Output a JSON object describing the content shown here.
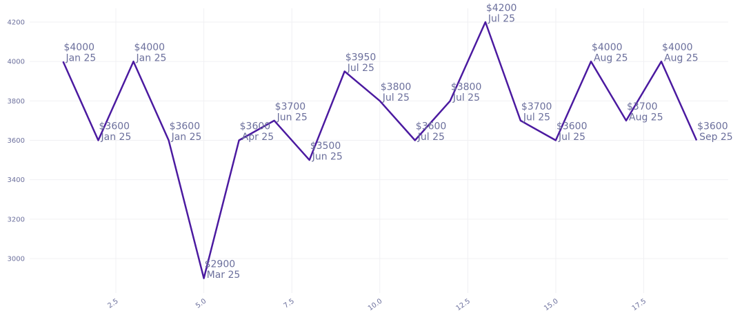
{
  "chart_data": {
    "type": "line",
    "x": [
      1,
      2,
      3,
      4,
      5,
      6,
      7,
      8,
      9,
      10,
      11,
      12,
      13,
      14,
      15,
      16,
      17,
      18,
      19
    ],
    "y": [
      4000,
      3600,
      4000,
      3600,
      2900,
      3600,
      3700,
      3500,
      3950,
      3800,
      3600,
      3800,
      4200,
      3700,
      3600,
      4000,
      3700,
      4000,
      3600
    ],
    "point_labels": [
      [
        "$4000",
        "Jan 25"
      ],
      [
        "$3600",
        "Jan 25"
      ],
      [
        "$4000",
        "Jan 25"
      ],
      [
        "$3600",
        "Jan 25"
      ],
      [
        "$2900",
        "Mar 25"
      ],
      [
        "$3600",
        "Apr 25"
      ],
      [
        "$3700",
        "Jun 25"
      ],
      [
        "$3500",
        "Jun 25"
      ],
      [
        "$3950",
        "Jul 25"
      ],
      [
        "$3800",
        "Jul 25"
      ],
      [
        "$3600",
        "Jul 25"
      ],
      [
        "$3800",
        "Jul 25"
      ],
      [
        "$4200",
        "Jul 25"
      ],
      [
        "$3700",
        "Jul 25"
      ],
      [
        "$3600",
        "Jul 25"
      ],
      [
        "$4000",
        "Aug 25"
      ],
      [
        "$3700",
        "Aug 25"
      ],
      [
        "$4000",
        "Aug 25"
      ],
      [
        "$3600",
        "Sep 25"
      ]
    ],
    "xticks": [
      2.5,
      5,
      7.5,
      10,
      12.5,
      15,
      17.5
    ],
    "xtick_labels": [
      "2.5",
      "5.0",
      "7.5",
      "10.0",
      "12.5",
      "15.0",
      "17.5"
    ],
    "yticks": [
      3000,
      3200,
      3400,
      3600,
      3800,
      4000,
      4200
    ],
    "ytick_labels": [
      "3000",
      "3200",
      "3400",
      "3600",
      "3800",
      "4000",
      "4200"
    ],
    "xlim": [
      0.05,
      19.9
    ],
    "ylim": [
      2825,
      4270
    ],
    "grid": true,
    "title": "",
    "xlabel": "",
    "ylabel": "",
    "line_color": "#4b1aa0",
    "text_color": "#6b6f9c"
  }
}
